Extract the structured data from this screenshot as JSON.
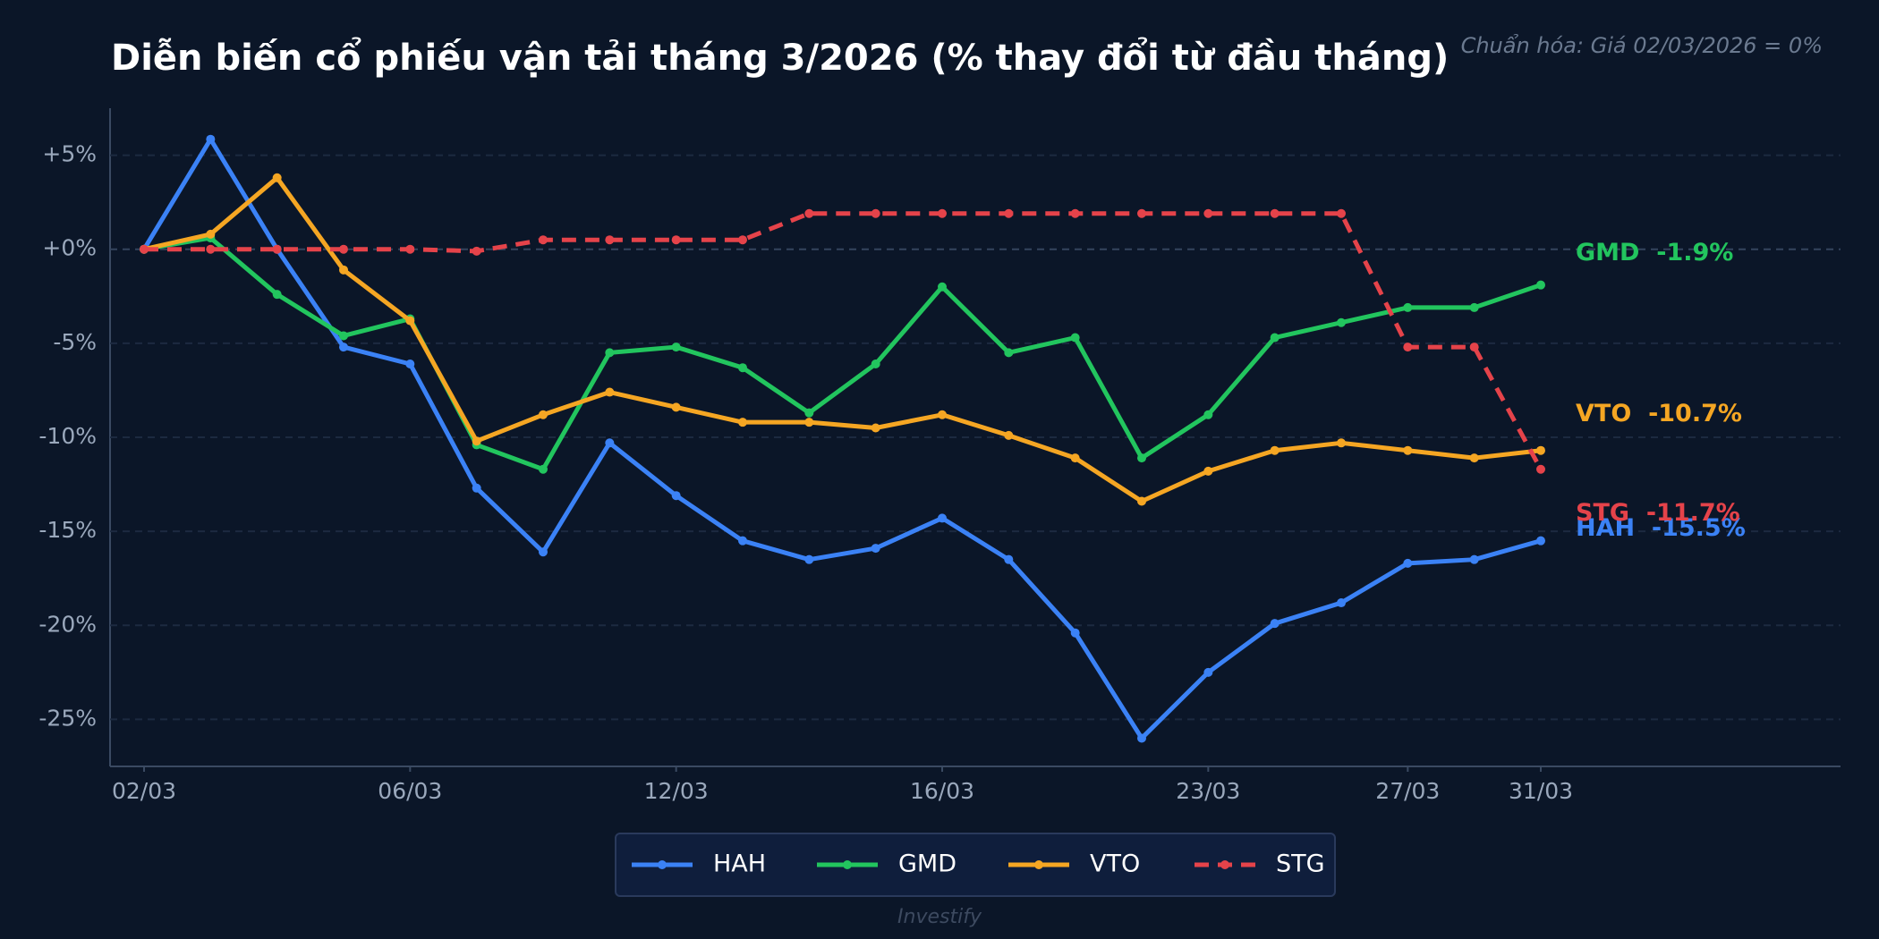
{
  "chart_data": {
    "type": "line",
    "title": "Diễn biến cổ phiếu vận tải tháng 3/2026 (% thay đổi từ đầu tháng)",
    "subtitle": "Chuẩn hóa: Giá 02/03/2026 = 0%",
    "footer": "Investify",
    "categories": [
      "02/03",
      null,
      null,
      null,
      "06/03",
      null,
      null,
      null,
      "12/03",
      null,
      null,
      null,
      "16/03",
      null,
      null,
      null,
      "23/03",
      null,
      null,
      "27/03",
      null,
      "31/03"
    ],
    "ylim": [
      -27.5,
      7.5
    ],
    "yticks": [
      {
        "value": -25,
        "label": "-25%"
      },
      {
        "value": -20,
        "label": "-20%"
      },
      {
        "value": -15,
        "label": "-15%"
      },
      {
        "value": -10,
        "label": "-10%"
      },
      {
        "value": -5,
        "label": "-5%"
      },
      {
        "value": 0,
        "label": "+0%"
      },
      {
        "value": 5,
        "label": "+5%"
      }
    ],
    "grid": true,
    "legend": "bottom",
    "series": [
      {
        "name": "HAH",
        "color": "#3b82f6",
        "dashed": false,
        "end_label": "HAH  -15.5%",
        "values": [
          0,
          5.85,
          0,
          -5.2,
          -6.1,
          -12.7,
          -16.1,
          -10.3,
          -13.1,
          -15.5,
          -16.5,
          -15.9,
          -14.3,
          -16.5,
          -20.4,
          -26.0,
          -22.5,
          -19.9,
          -18.8,
          -16.7,
          -16.5,
          -15.5
        ]
      },
      {
        "name": "GMD",
        "color": "#22c55e",
        "dashed": false,
        "end_label": "GMD  -1.9%",
        "values": [
          0,
          0.6,
          -2.4,
          -4.6,
          -3.7,
          -10.4,
          -11.7,
          -5.5,
          -5.2,
          -6.3,
          -8.7,
          -6.1,
          -2.0,
          -5.5,
          -4.7,
          -11.1,
          -8.8,
          -4.7,
          -3.9,
          -3.1,
          -3.1,
          -1.9
        ]
      },
      {
        "name": "VTO",
        "color": "#f5a623",
        "dashed": false,
        "end_label": "VTO  -10.7%",
        "values": [
          0,
          0.8,
          3.8,
          -1.1,
          -3.8,
          -10.2,
          -8.8,
          -7.6,
          -8.4,
          -9.2,
          -9.2,
          -9.5,
          -8.8,
          -9.9,
          -11.1,
          -13.4,
          -11.8,
          -10.7,
          -10.3,
          -10.7,
          -11.1,
          -10.7
        ]
      },
      {
        "name": "STG",
        "color": "#e5434a",
        "dashed": true,
        "end_label": "STG  -11.7%",
        "values": [
          0,
          0,
          0,
          0,
          0,
          -0.1,
          0.5,
          0.5,
          0.5,
          0.5,
          1.9,
          1.9,
          1.9,
          1.9,
          1.9,
          1.9,
          1.9,
          1.9,
          1.9,
          -5.2,
          -5.2,
          -11.7
        ]
      }
    ]
  }
}
